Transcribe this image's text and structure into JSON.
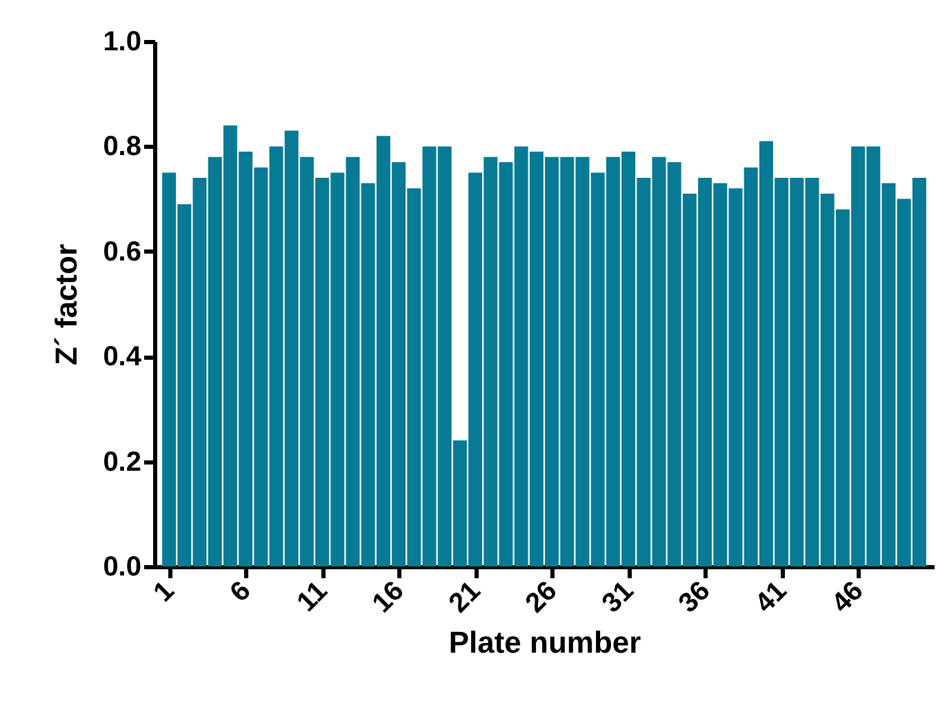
{
  "chart_data": {
    "type": "bar",
    "xlabel": "Plate number",
    "ylabel": "Z´ factor",
    "x": [
      1,
      2,
      3,
      4,
      5,
      6,
      7,
      8,
      9,
      10,
      11,
      12,
      13,
      14,
      15,
      16,
      17,
      18,
      19,
      20,
      21,
      22,
      23,
      24,
      25,
      26,
      27,
      28,
      29,
      30,
      31,
      32,
      33,
      34,
      35,
      36,
      37,
      38,
      39,
      40,
      41,
      42,
      43,
      44,
      45,
      46,
      47,
      48,
      49,
      50
    ],
    "values": [
      0.75,
      0.69,
      0.74,
      0.78,
      0.84,
      0.79,
      0.76,
      0.8,
      0.83,
      0.78,
      0.74,
      0.75,
      0.78,
      0.73,
      0.82,
      0.77,
      0.72,
      0.8,
      0.8,
      0.24,
      0.75,
      0.78,
      0.77,
      0.8,
      0.79,
      0.78,
      0.78,
      0.78,
      0.75,
      0.78,
      0.79,
      0.74,
      0.78,
      0.77,
      0.71,
      0.74,
      0.73,
      0.72,
      0.76,
      0.81,
      0.74,
      0.74,
      0.74,
      0.71,
      0.68,
      0.8,
      0.8,
      0.73,
      0.7,
      0.74
    ],
    "color": "#087a94",
    "xlim": [
      0.5,
      50.5
    ],
    "xticks": [
      1,
      6,
      11,
      16,
      21,
      26,
      31,
      36,
      41,
      46
    ],
    "ylim": [
      0,
      1
    ],
    "yticks": [
      {
        "value": 0,
        "label": "0.0"
      },
      {
        "value": 0.2,
        "label": "0.2"
      },
      {
        "value": 0.4,
        "label": "0.4"
      },
      {
        "value": 0.6,
        "label": "0.6"
      },
      {
        "value": 0.8,
        "label": "0.8"
      },
      {
        "value": 1,
        "label": "1.0"
      }
    ],
    "grid": false
  }
}
